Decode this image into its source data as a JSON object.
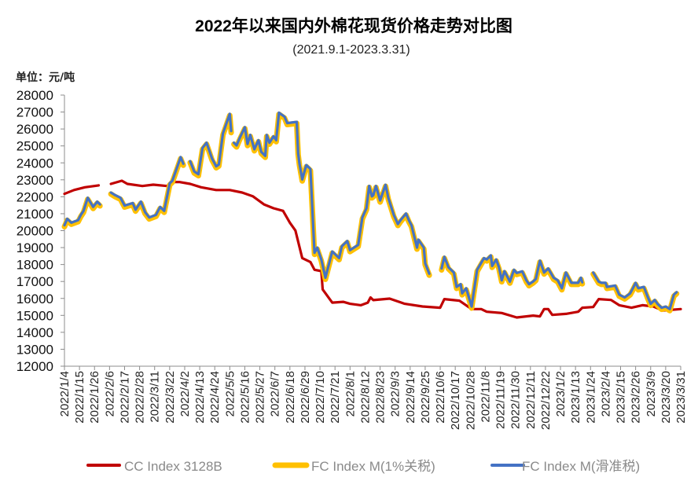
{
  "chart_data": {
    "type": "line",
    "title": "2022年以来国内外棉花现货价格走势对比图",
    "subtitle": "(2021.9.1-2023.3.31)",
    "ylabel": "单位：元/吨",
    "xlabel": "",
    "ylim": [
      12000,
      28000
    ],
    "ystep": 1000,
    "yticks": [
      "12000",
      "13000",
      "14000",
      "15000",
      "16000",
      "17000",
      "18000",
      "19000",
      "20000",
      "21000",
      "22000",
      "23000",
      "24000",
      "25000",
      "26000",
      "27000",
      "28000"
    ],
    "x_unit": "days since 2022/1/4",
    "xlim": [
      0,
      451
    ],
    "xticks": [
      "2022/1/4",
      "2022/1/15",
      "2022/1/26",
      "2022/2/6",
      "2022/2/17",
      "2022/2/28",
      "2022/3/11",
      "2022/3/22",
      "2022/4/2",
      "2022/4/13",
      "2022/4/24",
      "2022/5/5",
      "2022/5/16",
      "2022/5/27",
      "2022/6/7",
      "2022/6/18",
      "2022/6/29",
      "2022/7/10",
      "2022/7/21",
      "2022/8/1",
      "2022/8/12",
      "2022/8/23",
      "2022/9/3",
      "2022/9/14",
      "2022/9/25",
      "2022/10/6",
      "2022/10/17",
      "2022/10/28",
      "2022/11/8",
      "2022/11/19",
      "2022/11/30",
      "2022/12/11",
      "2022/12/22",
      "2023/1/2",
      "2023/1/13",
      "2023/1/24",
      "2023/2/4",
      "2023/2/15",
      "2023/2/26",
      "2023/3/9",
      "2023/3/20",
      "2023/3/31"
    ],
    "legend_position": "bottom",
    "series": [
      {
        "name": "CC Index 3128B",
        "color": "#C00000",
        "points": [
          [
            0,
            22170
          ],
          [
            7,
            22400
          ],
          [
            15,
            22560
          ],
          [
            25,
            22670
          ],
          null,
          [
            34,
            22760
          ],
          [
            42,
            22945
          ],
          [
            46,
            22760
          ],
          [
            57,
            22636
          ],
          [
            65,
            22713
          ],
          [
            75,
            22636
          ],
          [
            79,
            22870
          ],
          [
            84,
            22870
          ],
          [
            92,
            22760
          ],
          [
            100,
            22560
          ],
          [
            111,
            22400
          ],
          [
            121,
            22400
          ],
          [
            130,
            22250
          ],
          [
            138,
            22020
          ],
          [
            146,
            21550
          ],
          [
            153,
            21320
          ],
          [
            160,
            21170
          ],
          [
            165,
            20470
          ],
          [
            169,
            20010
          ],
          [
            174,
            18380
          ],
          [
            180,
            18150
          ],
          [
            183,
            17690
          ],
          [
            188,
            17610
          ],
          [
            189,
            16530
          ],
          [
            196,
            15750
          ],
          [
            204,
            15800
          ],
          [
            209,
            15680
          ],
          [
            217,
            15600
          ],
          [
            222,
            15750
          ],
          [
            224,
            16060
          ],
          [
            226,
            15900
          ],
          [
            238,
            15990
          ],
          [
            249,
            15680
          ],
          [
            262,
            15525
          ],
          [
            275,
            15450
          ],
          [
            278,
            15960
          ],
          [
            289,
            15870
          ],
          [
            298,
            15370
          ],
          [
            305,
            15370
          ],
          [
            309,
            15215
          ],
          [
            320,
            15140
          ],
          [
            331,
            14875
          ],
          [
            343,
            14985
          ],
          [
            348,
            14940
          ],
          [
            351,
            15370
          ],
          [
            354,
            15370
          ],
          [
            357,
            15030
          ],
          [
            367,
            15090
          ],
          [
            376,
            15215
          ],
          [
            379,
            15450
          ],
          [
            387,
            15490
          ],
          [
            391,
            15960
          ],
          [
            400,
            15910
          ],
          [
            406,
            15600
          ],
          [
            415,
            15450
          ],
          [
            423,
            15600
          ],
          [
            431,
            15525
          ],
          [
            438,
            15290
          ],
          [
            451,
            15370
          ]
        ]
      },
      {
        "name": "FC Index M(1%关税)",
        "color": "#FFC000",
        "same_shape_as": "FC Index M(滑准税)",
        "delta": -90
      },
      {
        "name": "FC Index M(滑准税)",
        "color": "#4472C4",
        "points": [
          [
            0,
            20320
          ],
          [
            2,
            20700
          ],
          [
            5,
            20470
          ],
          [
            10,
            20620
          ],
          [
            12,
            20930
          ],
          [
            14,
            21170
          ],
          [
            17,
            21940
          ],
          [
            21,
            21400
          ],
          [
            24,
            21710
          ],
          [
            26,
            21550
          ],
          null,
          [
            34,
            22250
          ],
          [
            37,
            22100
          ],
          [
            41,
            21940
          ],
          [
            44,
            21480
          ],
          [
            50,
            21630
          ],
          [
            52,
            21240
          ],
          [
            56,
            21710
          ],
          [
            59,
            21090
          ],
          [
            62,
            20780
          ],
          [
            67,
            20930
          ],
          [
            70,
            21400
          ],
          [
            73,
            21170
          ],
          [
            77,
            22790
          ],
          [
            79,
            22945
          ],
          [
            83,
            23870
          ],
          [
            85,
            24340
          ],
          [
            87,
            23950
          ],
          null,
          [
            92,
            24100
          ],
          [
            95,
            23490
          ],
          [
            98,
            23330
          ],
          [
            101,
            24880
          ],
          [
            104,
            25190
          ],
          [
            108,
            24260
          ],
          [
            111,
            23800
          ],
          [
            113,
            23900
          ],
          [
            116,
            25730
          ],
          [
            121,
            26890
          ],
          [
            122,
            25880
          ],
          null,
          [
            124,
            25190
          ],
          [
            126,
            25030
          ],
          [
            128,
            25420
          ],
          [
            132,
            26110
          ],
          [
            134,
            25110
          ],
          [
            136,
            25650
          ],
          [
            139,
            24800
          ],
          [
            142,
            25340
          ],
          [
            144,
            24650
          ],
          [
            147,
            24410
          ],
          [
            148,
            25650
          ],
          [
            150,
            25190
          ],
          [
            153,
            25570
          ],
          [
            155,
            25340
          ],
          [
            157,
            26960
          ],
          [
            161,
            26730
          ],
          [
            163,
            26350
          ],
          [
            170,
            26420
          ],
          [
            171,
            24570
          ],
          [
            172,
            23950
          ],
          [
            174,
            23020
          ],
          [
            177,
            23870
          ],
          [
            180,
            23640
          ],
          [
            183,
            18690
          ],
          [
            185,
            19000
          ],
          [
            188,
            18300
          ],
          [
            191,
            17220
          ],
          [
            196,
            18770
          ],
          [
            201,
            18380
          ],
          [
            203,
            19080
          ],
          [
            207,
            19390
          ],
          [
            209,
            18850
          ],
          [
            215,
            19160
          ],
          [
            218,
            20780
          ],
          [
            221,
            21320
          ],
          [
            223,
            22640
          ],
          [
            225,
            22020
          ],
          [
            226,
            22090
          ],
          [
            228,
            22640
          ],
          [
            231,
            21780
          ],
          [
            235,
            22710
          ],
          [
            237,
            21940
          ],
          [
            241,
            20930
          ],
          [
            244,
            20390
          ],
          [
            246,
            20620
          ],
          [
            250,
            21010
          ],
          [
            252,
            20620
          ],
          [
            254,
            20320
          ],
          [
            258,
            19000
          ],
          [
            259,
            19470
          ],
          [
            263,
            19000
          ],
          [
            264,
            18080
          ],
          [
            267,
            17460
          ],
          null,
          [
            276,
            17770
          ],
          [
            278,
            18460
          ],
          [
            281,
            17840
          ],
          [
            285,
            17530
          ],
          [
            287,
            16680
          ],
          [
            290,
            16840
          ],
          [
            291,
            16300
          ],
          [
            294,
            16600
          ],
          [
            298,
            15520
          ],
          [
            302,
            17690
          ],
          [
            307,
            18380
          ],
          [
            309,
            18300
          ],
          [
            312,
            18540
          ],
          [
            313,
            17920
          ],
          [
            316,
            18300
          ],
          [
            318,
            17840
          ],
          [
            320,
            17070
          ],
          [
            322,
            17610
          ],
          [
            326,
            16990
          ],
          [
            329,
            17690
          ],
          [
            331,
            17500
          ],
          [
            335,
            17600
          ],
          [
            338,
            17070
          ],
          [
            340,
            16840
          ],
          [
            343,
            17000
          ],
          [
            345,
            17150
          ],
          [
            348,
            18230
          ],
          [
            351,
            17530
          ],
          [
            354,
            17770
          ],
          [
            358,
            17220
          ],
          [
            361,
            17070
          ],
          [
            364,
            16600
          ],
          [
            367,
            17530
          ],
          [
            371,
            16920
          ],
          [
            376,
            16920
          ],
          [
            378,
            17220
          ],
          [
            379,
            16950
          ],
          null,
          [
            387,
            17530
          ],
          [
            391,
            16990
          ],
          [
            393,
            16920
          ],
          [
            396,
            16920
          ],
          [
            397,
            16680
          ],
          [
            403,
            16760
          ],
          [
            406,
            16220
          ],
          [
            410,
            16060
          ],
          [
            414,
            16300
          ],
          [
            416,
            16600
          ],
          [
            418,
            16920
          ],
          [
            420,
            16600
          ],
          [
            424,
            16680
          ],
          [
            427,
            16060
          ],
          [
            429,
            15680
          ],
          [
            432,
            15910
          ],
          [
            434,
            15680
          ],
          [
            437,
            15450
          ],
          [
            440,
            15520
          ],
          [
            443,
            15370
          ],
          [
            446,
            16220
          ],
          [
            448,
            16370
          ]
        ]
      }
    ]
  }
}
